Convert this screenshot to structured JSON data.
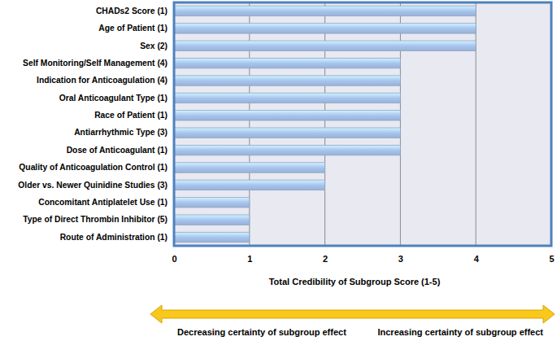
{
  "chart_data": {
    "type": "bar",
    "orientation": "horizontal",
    "categories": [
      "CHADs2 Score (1)",
      "Age of Patient (1)",
      "Sex (2)",
      "Self Monitoring/Self Management (4)",
      "Indication for Anticoagulation (4)",
      "Oral Anticoagulant Type (1)",
      "Race of Patient (1)",
      "Antiarrhythmic Type (3)",
      "Dose of Anticoagulant (1)",
      "Quality of Anticoagulation Control (1)",
      "Older vs. Newer Quinidine Studies (3)",
      "Concomitant Antiplatelet Use  (1)",
      "Type of Direct Thrombin Inhibitor (5)",
      "Route of Administration (1)"
    ],
    "values": [
      4,
      4,
      4,
      3,
      3,
      3,
      3,
      3,
      3,
      2,
      2,
      1,
      1,
      1
    ],
    "color": "#a9c5ee",
    "xlim": [
      0,
      5
    ],
    "xticks": [
      0,
      1,
      2,
      3,
      4,
      5
    ],
    "grid": true,
    "xlabel": "Total Credibility of Subgroup Score (1-5)",
    "annotations": [
      "Decreasing certainty of subgroup effect",
      "Increasing certainty of subgroup effect"
    ]
  }
}
